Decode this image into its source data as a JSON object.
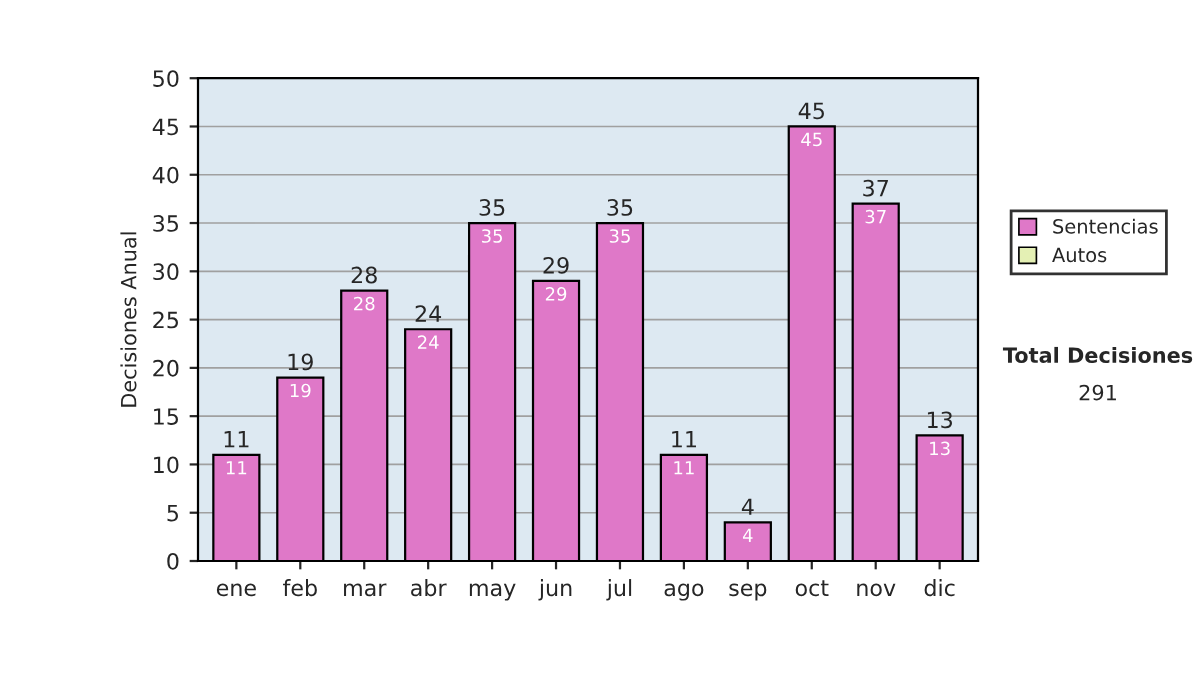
{
  "chart_data": {
    "type": "bar",
    "ylabel": "Decisiones Anual",
    "categories": [
      "ene",
      "feb",
      "mar",
      "abr",
      "may",
      "jun",
      "jul",
      "ago",
      "sep",
      "oct",
      "nov",
      "dic"
    ],
    "stacked": true,
    "series": [
      {
        "name": "Sentencias",
        "color": "#df78c8",
        "values": [
          11,
          19,
          28,
          24,
          35,
          29,
          35,
          11,
          4,
          45,
          37,
          13
        ],
        "value_labels": [
          "11",
          "19",
          "28",
          "24",
          "35",
          "29",
          "35",
          "11",
          "4",
          "45",
          "37",
          "13"
        ]
      },
      {
        "name": "Autos",
        "color": "#e4f0b4",
        "values": [
          0,
          0,
          0,
          0,
          0,
          0,
          0,
          0,
          0,
          0,
          0,
          0
        ]
      }
    ],
    "totals": [
      "11",
      "19",
      "28",
      "24",
      "35",
      "29",
      "35",
      "11",
      "4",
      "45",
      "37",
      "13"
    ],
    "ylim": [
      0,
      50
    ],
    "yticks": [
      0,
      5,
      10,
      15,
      20,
      25,
      30,
      35,
      40,
      45,
      50
    ],
    "grid": "y",
    "legend": "right",
    "annotations": [
      "Total Decisiones",
      "291"
    ]
  }
}
